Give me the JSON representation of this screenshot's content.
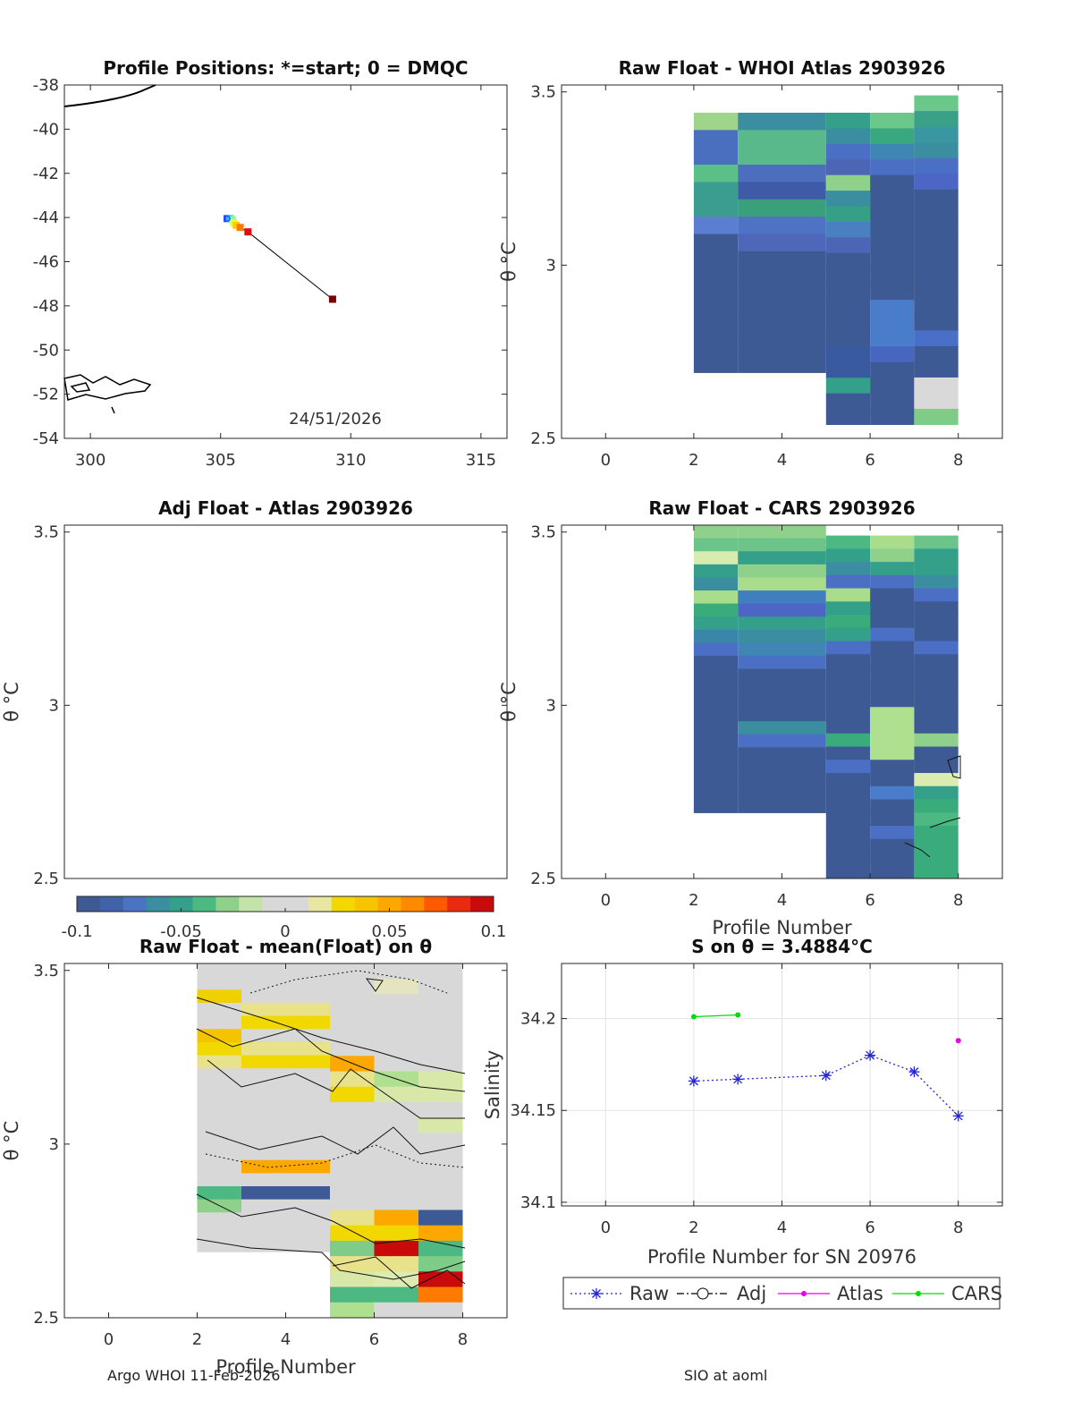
{
  "chart_data": [
    {
      "id": "positions",
      "type": "scatter",
      "title": "Profile Positions: *=start; 0 = DMQC",
      "xlim": [
        299,
        316
      ],
      "ylim": [
        -54,
        -38
      ],
      "xticks": [
        300,
        305,
        310,
        315
      ],
      "yticks": [
        -38,
        -40,
        -42,
        -44,
        -46,
        -48,
        -50,
        -52,
        -54
      ],
      "points": [
        {
          "x": 305.25,
          "y": -44.05,
          "color": "#1f4fff"
        },
        {
          "x": 305.35,
          "y": -44.05,
          "color": "#2ec4ff"
        },
        {
          "x": 305.45,
          "y": -44.1,
          "color": "#7fffa0"
        },
        {
          "x": 305.5,
          "y": -44.25,
          "color": "#e8ff4a"
        },
        {
          "x": 305.6,
          "y": -44.35,
          "color": "#ffcc00"
        },
        {
          "x": 305.75,
          "y": -44.45,
          "color": "#ff7a00"
        },
        {
          "x": 306.05,
          "y": -44.65,
          "color": "#e01010"
        },
        {
          "x": 309.3,
          "y": -47.7,
          "color": "#7a0000"
        }
      ],
      "annotation": "24/51/2026"
    },
    {
      "id": "whoi",
      "type": "heatmap",
      "title": "Raw Float - WHOI Atlas  2903926",
      "xlim": [
        -1,
        9
      ],
      "ylim": [
        2.5,
        3.52
      ],
      "xticks": [
        0,
        2,
        4,
        6,
        8
      ],
      "yticks": [
        2.5,
        3,
        3.5
      ],
      "ylabel": "θ °C",
      "columns": [
        {
          "x0": 2,
          "x1": 3,
          "top": 3.44,
          "bottom": 2.69,
          "colors": [
            "#9ed58a",
            "#4a6fbf",
            "#4a6fbf",
            "#5bbf88",
            "#3a9d8f",
            "#3a9d8f",
            "#5b7ed0",
            "#3e5a94",
            "#3e5a94",
            "#3e5a94",
            "#3e5a94",
            "#3e5a94",
            "#3e5a94",
            "#3e5a94",
            "#3e5a94"
          ]
        },
        {
          "x0": 3,
          "x1": 4,
          "top": 3.44,
          "bottom": 2.69,
          "colors": [
            "#3a8ea0",
            "#5ab98a",
            "#5ab98a",
            "#4d6dbf",
            "#3f5aa6",
            "#3aa07c",
            "#4f73c4",
            "#4f67b8",
            "#3e5a94",
            "#3e5a94",
            "#3e5a94",
            "#3e5a94",
            "#3e5a94",
            "#3e5a94",
            "#3e5a94"
          ]
        },
        {
          "x0": 4,
          "x1": 5,
          "top": 3.44,
          "bottom": 2.69,
          "colors": [
            "#3a8ea0",
            "#5ab98a",
            "#5ab98a",
            "#4d6dbf",
            "#3f5aa6",
            "#3aa07c",
            "#4f73c4",
            "#4f67b8",
            "#3e5a94",
            "#3e5a94",
            "#3e5a94",
            "#3e5a94",
            "#3e5a94",
            "#3e5a94",
            "#3e5a94"
          ]
        },
        {
          "x0": 5,
          "x1": 6,
          "top": 3.44,
          "bottom": 2.54,
          "colors": [
            "#35a08a",
            "#3a8ea0",
            "#4a6fc4",
            "#4d65b5",
            "#8fd18a",
            "#3a8ea0",
            "#35a085",
            "#4a7fc0",
            "#4d65b5",
            "#3e5a94",
            "#3e5a94",
            "#3e5a94",
            "#3e5a94",
            "#3e5a94",
            "#3e5a94",
            "#3a5a9f",
            "#3a5a9f",
            "#35a08a",
            "#3e5a94",
            "#3e5a94"
          ]
        },
        {
          "x0": 6,
          "x1": 7,
          "top": 3.44,
          "bottom": 2.54,
          "colors": [
            "#6cc88a",
            "#3aa87f",
            "#3f86b5",
            "#4a6fc4",
            "#3e5a94",
            "#3e5a94",
            "#3e5a94",
            "#3e5a94",
            "#3e5a94",
            "#3e5a94",
            "#3e5a94",
            "#3e5a94",
            "#4a7ccc",
            "#4a7ccc",
            "#4a7ccc",
            "#4866c0",
            "#3e5a94",
            "#3e5a94",
            "#3e5a94",
            "#3e5a94"
          ]
        },
        {
          "x0": 7,
          "x1": 8,
          "top": 3.49,
          "bottom": 2.54,
          "colors": [
            "#6cc88a",
            "#3aa087",
            "#3a96a0",
            "#3a8ea0",
            "#4a6fc4",
            "#4d65c5",
            "#3e5a94",
            "#3e5a94",
            "#3e5a94",
            "#3e5a94",
            "#3e5a94",
            "#3e5a94",
            "#3e5a94",
            "#3e5a94",
            "#3e5a94",
            "#4a6fc8",
            "#3e5a94",
            "#3e5a94",
            "#d9d9d9",
            "#d9d9d9",
            "#7fcc88"
          ]
        }
      ]
    },
    {
      "id": "adj",
      "type": "heatmap",
      "title": "Adj Float - Atlas  2903926",
      "xlim": [
        -1,
        9
      ],
      "ylim": [
        2.5,
        3.52
      ],
      "yticks": [
        2.5,
        3,
        3.5
      ],
      "ylabel": "θ °C",
      "columns": []
    },
    {
      "id": "cars",
      "type": "heatmap",
      "title": "Raw Float - CARS  2903926",
      "xlim": [
        -1,
        9
      ],
      "ylim": [
        2.5,
        3.52
      ],
      "xticks": [
        0,
        2,
        4,
        6,
        8
      ],
      "yticks": [
        2.5,
        3,
        3.5
      ],
      "xlabel": "Profile Number",
      "ylabel": "θ °C",
      "columns": [
        {
          "x0": 2,
          "x1": 3,
          "top": 3.52,
          "bottom": 2.69,
          "colors": [
            "#8fd08a",
            "#6cc48a",
            "#d8ebb0",
            "#35a08a",
            "#3a8ea0",
            "#a9dd8c",
            "#3aac7c",
            "#35a08a",
            "#3a86a8",
            "#4a6fc4",
            "#3e5a94",
            "#3e5a94",
            "#3e5a94",
            "#3e5a94",
            "#3e5a94",
            "#3e5a94",
            "#3e5a94",
            "#3e5a94",
            "#3e5a94",
            "#3e5a94",
            "#3e5a94",
            "#3e5a94"
          ]
        },
        {
          "x0": 3,
          "x1": 5,
          "top": 3.52,
          "bottom": 2.69,
          "colors": [
            "#8fd08a",
            "#6cc48a",
            "#35a08a",
            "#8fd08a",
            "#a9dd8c",
            "#3f7fbf",
            "#4d65c5",
            "#35a08a",
            "#3a8ea0",
            "#3f86b5",
            "#4a6fc4",
            "#3e5a94",
            "#3e5a94",
            "#3e5a94",
            "#3e5a94",
            "#3a8ea0",
            "#4a6fc4",
            "#3e5a94",
            "#3e5a94",
            "#3e5a94",
            "#3e5a94",
            "#3e5a94"
          ]
        },
        {
          "x0": 5,
          "x1": 6,
          "top": 3.49,
          "bottom": 2.5,
          "colors": [
            "#4db882",
            "#35a08a",
            "#3a8ea0",
            "#4a6fc4",
            "#a9dd8c",
            "#35a08a",
            "#3aac7c",
            "#35a08a",
            "#4a6fc4",
            "#3e5a94",
            "#3e5a94",
            "#3e5a94",
            "#3e5a94",
            "#3e5a94",
            "#3e5a94",
            "#3aac7c",
            "#3e5a94",
            "#4a6fc4",
            "#3e5a94",
            "#3e5a94",
            "#3e5a94",
            "#3e5a94",
            "#3e5a94",
            "#3e5a94",
            "#3e5a94",
            "#3e5a94"
          ]
        },
        {
          "x0": 6,
          "x1": 7,
          "top": 3.49,
          "bottom": 2.5,
          "colors": [
            "#a9dd8c",
            "#8fd08a",
            "#35a08a",
            "#4a6fc4",
            "#3e5a94",
            "#3e5a94",
            "#3e5a94",
            "#4a6fc4",
            "#3e5a94",
            "#3e5a94",
            "#3e5a94",
            "#3e5a94",
            "#3e5a94",
            "#aee08f",
            "#aee08f",
            "#aee08f",
            "#aee08f",
            "#3e5a94",
            "#3e5a94",
            "#4a7ccc",
            "#3e5a94",
            "#3e5a94",
            "#4a6fc4",
            "#3e5a94",
            "#3e5a94",
            "#3e5a94"
          ]
        },
        {
          "x0": 7,
          "x1": 8,
          "top": 3.49,
          "bottom": 2.5,
          "colors": [
            "#6cc48a",
            "#35a08a",
            "#35a08a",
            "#3a8ea0",
            "#4a6fc4",
            "#3e5a94",
            "#3e5a94",
            "#3e5a94",
            "#4a6fc4",
            "#3e5a94",
            "#3e5a94",
            "#3e5a94",
            "#3e5a94",
            "#3e5a94",
            "#3e5a94",
            "#8fd08a",
            "#3e5a94",
            "#3e5a94",
            "#dcebb0",
            "#35a08a",
            "#3aac7c",
            "#4db882",
            "#3aac7c",
            "#3aac7c",
            "#3aac7c",
            "#3aac7c"
          ]
        }
      ]
    },
    {
      "id": "colorbar",
      "type": "heatmap",
      "range": [
        -0.1,
        0.1
      ],
      "ticks": [
        "-0.1",
        "-0.05",
        "0",
        "0.05",
        "0.1"
      ],
      "colors": [
        "#3e5a94",
        "#4063a8",
        "#4a74c0",
        "#3a8ea0",
        "#35a08a",
        "#4db882",
        "#8fd08a",
        "#c4e3a8",
        "#d8d8d8",
        "#d8d8d8",
        "#e8e6a0",
        "#f2d800",
        "#f7c400",
        "#fca800",
        "#ff8a00",
        "#ff5a00",
        "#e82a10",
        "#c80a0a"
      ]
    },
    {
      "id": "mean",
      "type": "heatmap",
      "title": "Raw Float - mean(Float) on θ",
      "xlim": [
        -1,
        9
      ],
      "ylim": [
        2.5,
        3.52
      ],
      "xticks": [
        0,
        2,
        4,
        6,
        8
      ],
      "yticks": [
        2.5,
        3,
        3.5
      ],
      "xlabel": "Profile Number",
      "ylabel": "θ °C",
      "columns": [
        {
          "x0": 2,
          "x1": 3,
          "top": 3.52,
          "bottom": 2.69,
          "colors": [
            "#d8d8d8",
            "#d8d8d8",
            "#f0d000",
            "#d8d8d8",
            "#d8d8d8",
            "#f5c400",
            "#f0d800",
            "#e8e28a",
            "#d8d8d8",
            "#d8d8d8",
            "#d8d8d8",
            "#d8d8d8",
            "#d8d8d8",
            "#d8d8d8",
            "#d8d8d8",
            "#d8d8d8",
            "#d8d8d8",
            "#4db882",
            "#8fd08a",
            "#d8d8d8",
            "#d8d8d8",
            "#d8d8d8"
          ]
        },
        {
          "x0": 3,
          "x1": 5,
          "top": 3.52,
          "bottom": 2.69,
          "colors": [
            "#d8d8d8",
            "#d8d8d8",
            "#d8d8d8",
            "#e8e28a",
            "#f0d800",
            "#d8d8d8",
            "#e8e28a",
            "#f0d800",
            "#d8d8d8",
            "#d8d8d8",
            "#d8d8d8",
            "#d8d8d8",
            "#d8d8d8",
            "#d8d8d8",
            "#d8d8d8",
            "#fca800",
            "#d8d8d8",
            "#3e5a94",
            "#d8d8d8",
            "#d8d8d8",
            "#d8d8d8",
            "#d8d8d8"
          ]
        },
        {
          "x0": 5,
          "x1": 6,
          "top": 3.52,
          "bottom": 2.5,
          "colors": [
            "#d8d8d8",
            "#d8d8d8",
            "#d8d8d8",
            "#d8d8d8",
            "#d8d8d8",
            "#d8d8d8",
            "#fca800",
            "#e8e28a",
            "#f0d800",
            "#d8d8d8",
            "#d8d8d8",
            "#d8d8d8",
            "#d8d8d8",
            "#d8d8d8",
            "#d8d8d8",
            "#d8d8d8",
            "#e8e28a",
            "#f0d800",
            "#7fcc88",
            "#e8e28a",
            "#d8e8a8",
            "#4db882",
            "#aee08f"
          ]
        },
        {
          "x0": 6,
          "x1": 7,
          "top": 3.52,
          "bottom": 2.5,
          "colors": [
            "#d8d8d8",
            "#e4e4c0",
            "#d8d8d8",
            "#d8d8d8",
            "#d8d8d8",
            "#d8d8d8",
            "#d8d8d8",
            "#aee08f",
            "#d8e8a8",
            "#d8d8d8",
            "#d8d8d8",
            "#d8d8d8",
            "#d8d8d8",
            "#d8d8d8",
            "#d8d8d8",
            "#d8d8d8",
            "#fca800",
            "#f0d800",
            "#c80a0a",
            "#e8e28a",
            "#dcebb0",
            "#4db882",
            "#d8d8d8"
          ]
        },
        {
          "x0": 7,
          "x1": 8,
          "top": 3.52,
          "bottom": 2.5,
          "colors": [
            "#d8d8d8",
            "#d8d8d8",
            "#d8d8d8",
            "#d8d8d8",
            "#d8d8d8",
            "#d8d8d8",
            "#d8d8d8",
            "#d8e8a8",
            "#d8e8a8",
            "#d8d8d8",
            "#d8e8a8",
            "#d8d8d8",
            "#d8d8d8",
            "#d8d8d8",
            "#d8d8d8",
            "#d8d8d8",
            "#3e5a94",
            "#fca800",
            "#4db882",
            "#7fcc88",
            "#c80a0a",
            "#ff7a00",
            "#d8d8d8"
          ]
        }
      ]
    },
    {
      "id": "salinity",
      "type": "line",
      "title": "S on θ = 3.4884°C",
      "xlim": [
        -1,
        9
      ],
      "ylim": [
        34.098,
        34.23
      ],
      "xticks": [
        0,
        2,
        4,
        6,
        8
      ],
      "yticks": [
        34.1,
        34.15,
        34.2
      ],
      "xlabel": "Profile Number for SN 20976",
      "ylabel": "Salinity",
      "series": [
        {
          "name": "Raw",
          "color": "#2222dd",
          "style": "dotted",
          "marker": "asterisk",
          "x": [
            2,
            3,
            5,
            6,
            7,
            8
          ],
          "y": [
            34.166,
            34.167,
            34.169,
            34.18,
            34.171,
            34.147
          ]
        },
        {
          "name": "Adj",
          "color": "#000000",
          "style": "dashdot",
          "marker": "circle",
          "x": [],
          "y": []
        },
        {
          "name": "Atlas",
          "color": "#ee00ee",
          "style": "solid",
          "marker": "dot",
          "x": [
            8
          ],
          "y": [
            34.188
          ]
        },
        {
          "name": "CARS",
          "color": "#00dd00",
          "style": "solid",
          "marker": "dot",
          "x": [
            2,
            3
          ],
          "y": [
            34.201,
            34.202
          ]
        }
      ]
    }
  ],
  "footer": {
    "left": "Argo WHOI 11-Feb-2026",
    "right": "SIO at aoml"
  }
}
